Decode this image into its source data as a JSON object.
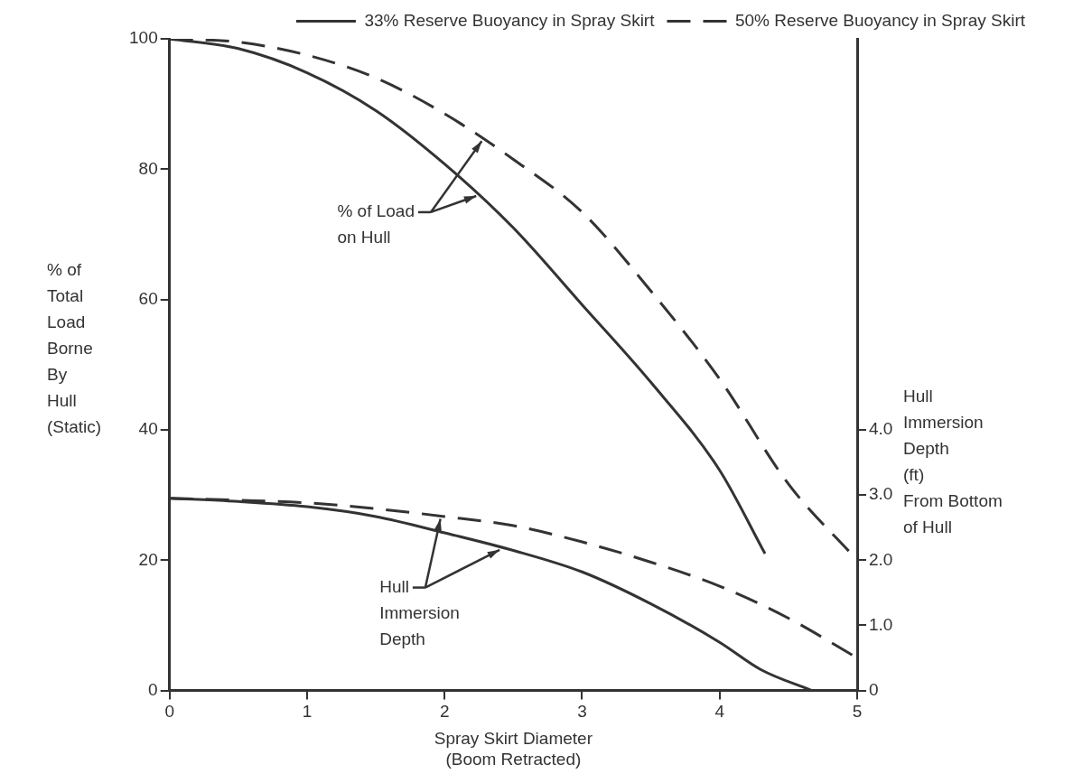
{
  "chart_data": {
    "type": "line",
    "xlabel": "Spray Skirt Diameter\n(Boom Retracted)",
    "ylabel": "% of\nTotal\nLoad\nBorne\nBy\nHull\n(Static)",
    "y2label": "Hull\nImmersion\nDepth\n(ft)\nFrom Bottom\nof Hull",
    "xlim": [
      0,
      5
    ],
    "xticks": [
      0,
      1,
      2,
      3,
      4,
      5
    ],
    "ylim": [
      0,
      100
    ],
    "yticks": [
      0,
      20,
      40,
      60,
      80,
      100
    ],
    "y2lim": [
      0,
      10
    ],
    "y2ticks": [
      0,
      {
        "value": 1,
        "label": "1.0"
      },
      {
        "value": 2,
        "label": "2.0"
      },
      {
        "value": 3,
        "label": "3.0"
      },
      {
        "value": 4,
        "label": "4.0"
      }
    ],
    "grid": false,
    "legend": "top right",
    "marker": "none",
    "series": [
      {
        "name": "33% Reserve Buoyancy in Spray Skirt",
        "color": "#333333",
        "line_style": "solid",
        "x": [
          0,
          0.5,
          1,
          1.5,
          2,
          2.5,
          3,
          3.5,
          4,
          4.33
        ],
        "values": [
          100,
          98.5,
          94.8,
          89,
          80.8,
          71,
          59.2,
          47.3,
          33.8,
          21
        ]
      },
      {
        "name": "50% Reserve Buoyancy in Spray Skirt",
        "color": "#333333",
        "line_style": "dashed",
        "x": [
          0,
          0.5,
          1,
          1.5,
          2,
          2.5,
          3,
          3.5,
          4,
          4.5,
          5
        ],
        "values": [
          100,
          99.5,
          97.5,
          94,
          88.5,
          81.5,
          73.4,
          61.3,
          47.8,
          31.7,
          20
        ]
      },
      {
        "color": "#333333",
        "line_style": "solid",
        "axis": "y2",
        "x": [
          0,
          0.5,
          1,
          1.5,
          2,
          2.5,
          3,
          3.5,
          4,
          4.3,
          4.67
        ],
        "values": [
          2.95,
          2.9,
          2.82,
          2.67,
          2.42,
          2.15,
          1.82,
          1.33,
          0.74,
          0.32,
          0
        ]
      },
      {
        "color": "#333333",
        "line_style": "dashed",
        "axis": "y2",
        "x": [
          0,
          0.5,
          1,
          1.5,
          2,
          2.5,
          3,
          3.5,
          4,
          4.5,
          5
        ],
        "values": [
          2.95,
          2.92,
          2.88,
          2.79,
          2.67,
          2.53,
          2.28,
          1.97,
          1.6,
          1.11,
          0.5
        ]
      }
    ],
    "annotations": [
      {
        "text": "% of Load\non Hull",
        "x": 2.23,
        "y": 76.3
      },
      {
        "text": "Hull\nImmersion\nDepth",
        "x": 2.4,
        "y": 22
      }
    ]
  }
}
